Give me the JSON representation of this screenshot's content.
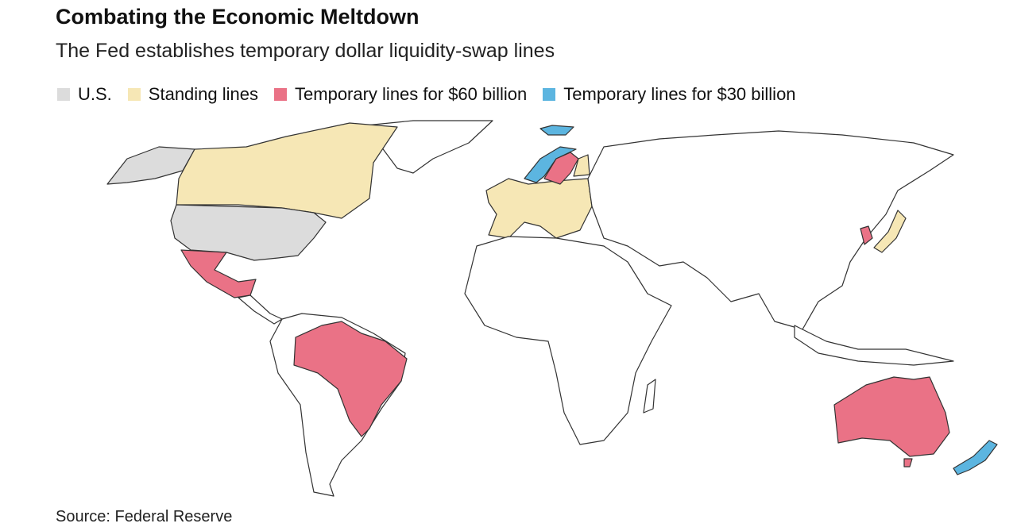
{
  "title": "Combating the Economic Meltdown",
  "subtitle": "The Fed establishes temporary dollar liquidity-swap lines",
  "legend": [
    {
      "label": "U.S.",
      "color": "#dcdcdc"
    },
    {
      "label": "Standing lines",
      "color": "#f6e7b5"
    },
    {
      "label": "Temporary lines for $60 billion",
      "color": "#ea7286"
    },
    {
      "label": "Temporary lines for $30 billion",
      "color": "#5cb5e0"
    }
  ],
  "source": "Source: Federal Reserve"
}
